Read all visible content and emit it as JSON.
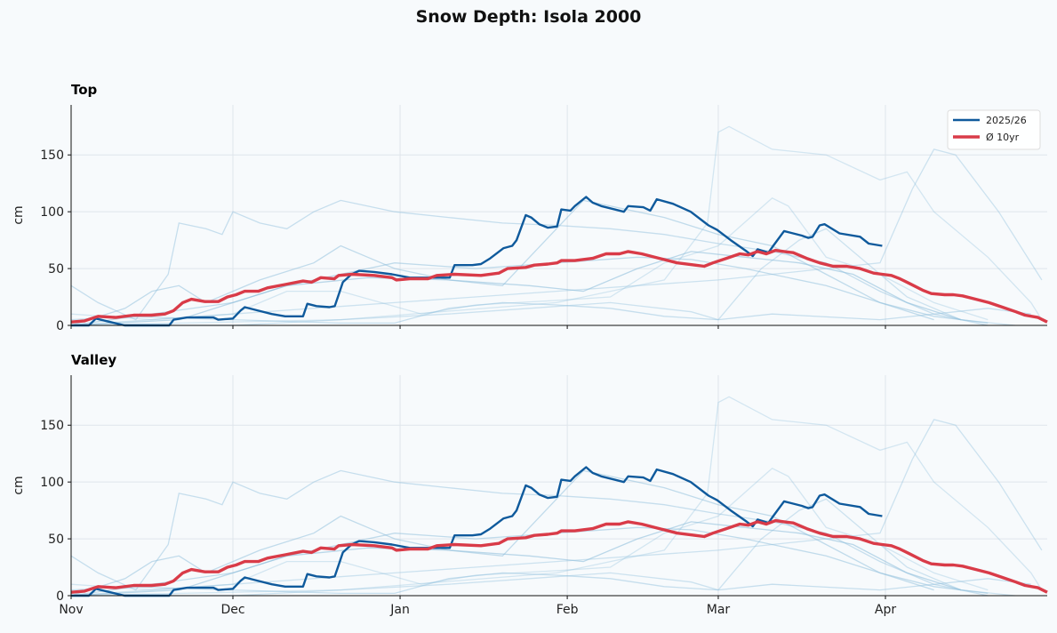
{
  "chart_data": {
    "type": "line",
    "title": "Snow Depth: Isola 2000",
    "xlabel": "",
    "ylabel": "cm",
    "x_unit": "days since Nov 1",
    "xlim": [
      0,
      181
    ],
    "ylim": [
      0,
      194
    ],
    "yticks": [
      0,
      50,
      100,
      150
    ],
    "xticks": [
      {
        "day": 0,
        "label": "Nov"
      },
      {
        "day": 30,
        "label": "Dec"
      },
      {
        "day": 61,
        "label": "Jan"
      },
      {
        "day": 92,
        "label": "Feb"
      },
      {
        "day": 120,
        "label": "Mar"
      },
      {
        "day": 151,
        "label": "Apr"
      }
    ],
    "grid": true,
    "legend_position": "top-right",
    "colors": {
      "current": "#0f5a9c",
      "average": "#d93b48",
      "history": "#8fbfdc",
      "grid": "#dfe5eb"
    },
    "panels": [
      {
        "title": "Top"
      },
      {
        "title": "Valley"
      }
    ],
    "series": [
      {
        "name": "2025/26",
        "role": "current",
        "points": [
          [
            0,
            0
          ],
          [
            3.3,
            0
          ],
          [
            4.6,
            6
          ],
          [
            9.9,
            0
          ],
          [
            18.2,
            0
          ],
          [
            19,
            5
          ],
          [
            21.5,
            7
          ],
          [
            26.4,
            7
          ],
          [
            27.3,
            5
          ],
          [
            30,
            6
          ],
          [
            31.4,
            13
          ],
          [
            32.2,
            16
          ],
          [
            34.7,
            13
          ],
          [
            37.2,
            10
          ],
          [
            39.7,
            8
          ],
          [
            43,
            8
          ],
          [
            43.8,
            19
          ],
          [
            45.5,
            17
          ],
          [
            47.9,
            16
          ],
          [
            48.9,
            17
          ],
          [
            50.4,
            38
          ],
          [
            52,
            45
          ],
          [
            53.4,
            48
          ],
          [
            56.2,
            47
          ],
          [
            59.5,
            45
          ],
          [
            62.8,
            42
          ],
          [
            67,
            42
          ],
          [
            70.2,
            42
          ],
          [
            71.1,
            53
          ],
          [
            74.4,
            53
          ],
          [
            76,
            54
          ],
          [
            77.7,
            59
          ],
          [
            80.2,
            68
          ],
          [
            81.8,
            70
          ],
          [
            82.6,
            75
          ],
          [
            84.3,
            97
          ],
          [
            85.3,
            95
          ],
          [
            86.8,
            89
          ],
          [
            88.4,
            86
          ],
          [
            90.1,
            87
          ],
          [
            90.9,
            102
          ],
          [
            92.6,
            101
          ],
          [
            93.4,
            105
          ],
          [
            95.5,
            113
          ],
          [
            96.7,
            108
          ],
          [
            98.3,
            105
          ],
          [
            100.8,
            102
          ],
          [
            102.5,
            100
          ],
          [
            103.3,
            105
          ],
          [
            106.1,
            104
          ],
          [
            107.4,
            101
          ],
          [
            108.6,
            111
          ],
          [
            111.6,
            107
          ],
          [
            114.9,
            100
          ],
          [
            118.2,
            88
          ],
          [
            119.8,
            84
          ],
          [
            122.3,
            75
          ],
          [
            125.3,
            65
          ],
          [
            126.4,
            61
          ],
          [
            127.3,
            67
          ],
          [
            129.3,
            64
          ],
          [
            130.2,
            70
          ],
          [
            132.2,
            83
          ],
          [
            135.5,
            79
          ],
          [
            136.7,
            77
          ],
          [
            137.5,
            78
          ],
          [
            138.8,
            88
          ],
          [
            139.7,
            89
          ],
          [
            142.5,
            81
          ],
          [
            146.3,
            78
          ],
          [
            147.9,
            72
          ],
          [
            150.4,
            70
          ]
        ]
      },
      {
        "name": "Ø 10yr",
        "role": "average",
        "points": [
          [
            0,
            3
          ],
          [
            2.5,
            4
          ],
          [
            5,
            8
          ],
          [
            8.3,
            7
          ],
          [
            11.6,
            9
          ],
          [
            14.9,
            9
          ],
          [
            17.4,
            10
          ],
          [
            19,
            13
          ],
          [
            20.7,
            20
          ],
          [
            22.3,
            23
          ],
          [
            24.8,
            21
          ],
          [
            27.3,
            21
          ],
          [
            29,
            25
          ],
          [
            30.6,
            27
          ],
          [
            32.2,
            30
          ],
          [
            34.7,
            30
          ],
          [
            36.4,
            33
          ],
          [
            39.7,
            36
          ],
          [
            43,
            39
          ],
          [
            44.6,
            38
          ],
          [
            46.3,
            42
          ],
          [
            48.8,
            41
          ],
          [
            49.6,
            44
          ],
          [
            52.1,
            45
          ],
          [
            56.2,
            44
          ],
          [
            59.5,
            42
          ],
          [
            60.3,
            40
          ],
          [
            62.8,
            41
          ],
          [
            66.1,
            41
          ],
          [
            67.8,
            44
          ],
          [
            71.1,
            45
          ],
          [
            76,
            44
          ],
          [
            79.3,
            46
          ],
          [
            80.9,
            50
          ],
          [
            84.3,
            51
          ],
          [
            85.9,
            53
          ],
          [
            88.4,
            54
          ],
          [
            90.1,
            55
          ],
          [
            90.9,
            57
          ],
          [
            93.4,
            57
          ],
          [
            96.7,
            59
          ],
          [
            99.2,
            63
          ],
          [
            101.7,
            63
          ],
          [
            103.3,
            65
          ],
          [
            105.8,
            63
          ],
          [
            109.1,
            59
          ],
          [
            112.4,
            55
          ],
          [
            115.7,
            53
          ],
          [
            117.4,
            52
          ],
          [
            119,
            55
          ],
          [
            121.5,
            59
          ],
          [
            124,
            63
          ],
          [
            125.6,
            62
          ],
          [
            127.3,
            65
          ],
          [
            128.9,
            63
          ],
          [
            130.6,
            66
          ],
          [
            132.2,
            65
          ],
          [
            133.9,
            64
          ],
          [
            136.4,
            59
          ],
          [
            138.8,
            55
          ],
          [
            141.3,
            52
          ],
          [
            143.8,
            52
          ],
          [
            146.3,
            50
          ],
          [
            148.8,
            46
          ],
          [
            150.4,
            45
          ],
          [
            152.1,
            44
          ],
          [
            153.7,
            41
          ],
          [
            155.4,
            37
          ],
          [
            157.9,
            31
          ],
          [
            159.5,
            28
          ],
          [
            162,
            27
          ],
          [
            163.6,
            27
          ],
          [
            165.3,
            26
          ],
          [
            167.8,
            23
          ],
          [
            170.2,
            20
          ],
          [
            172.7,
            16
          ],
          [
            175.2,
            12
          ],
          [
            176.9,
            9
          ],
          [
            179.3,
            7
          ],
          [
            181,
            3
          ]
        ]
      }
    ],
    "history": [
      [
        [
          0,
          0
        ],
        [
          50,
          5
        ],
        [
          90,
          20
        ],
        [
          110,
          40
        ],
        [
          118,
          90
        ],
        [
          120,
          170
        ],
        [
          122,
          175
        ],
        [
          130,
          155
        ],
        [
          140,
          150
        ],
        [
          150,
          128
        ],
        [
          155,
          135
        ],
        [
          160,
          100
        ],
        [
          170,
          60
        ],
        [
          178,
          20
        ],
        [
          180,
          5
        ]
      ],
      [
        [
          0,
          0
        ],
        [
          30,
          10
        ],
        [
          60,
          20
        ],
        [
          90,
          30
        ],
        [
          120,
          40
        ],
        [
          150,
          55
        ],
        [
          156,
          120
        ],
        [
          160,
          155
        ],
        [
          164,
          150
        ],
        [
          172,
          100
        ],
        [
          180,
          40
        ]
      ],
      [
        [
          0,
          35
        ],
        [
          5,
          20
        ],
        [
          12,
          5
        ],
        [
          15,
          25
        ],
        [
          18,
          45
        ],
        [
          20,
          90
        ],
        [
          25,
          85
        ],
        [
          28,
          80
        ],
        [
          30,
          100
        ],
        [
          35,
          90
        ],
        [
          40,
          85
        ],
        [
          45,
          100
        ],
        [
          50,
          110
        ],
        [
          60,
          100
        ],
        [
          70,
          95
        ],
        [
          80,
          90
        ],
        [
          90,
          88
        ],
        [
          100,
          85
        ],
        [
          110,
          80
        ],
        [
          120,
          72
        ],
        [
          130,
          65
        ],
        [
          140,
          55
        ],
        [
          150,
          30
        ],
        [
          160,
          10
        ],
        [
          170,
          0
        ]
      ],
      [
        [
          0,
          0
        ],
        [
          10,
          15
        ],
        [
          15,
          30
        ],
        [
          20,
          35
        ],
        [
          25,
          20
        ],
        [
          35,
          40
        ],
        [
          45,
          55
        ],
        [
          50,
          70
        ],
        [
          55,
          60
        ],
        [
          60,
          50
        ],
        [
          70,
          40
        ],
        [
          80,
          35
        ],
        [
          95,
          110
        ],
        [
          100,
          105
        ],
        [
          110,
          95
        ],
        [
          120,
          80
        ],
        [
          130,
          70
        ],
        [
          140,
          45
        ],
        [
          150,
          20
        ],
        [
          160,
          5
        ]
      ],
      [
        [
          0,
          0
        ],
        [
          20,
          5
        ],
        [
          30,
          20
        ],
        [
          40,
          35
        ],
        [
          55,
          42
        ],
        [
          70,
          40
        ],
        [
          85,
          35
        ],
        [
          95,
          30
        ],
        [
          105,
          50
        ],
        [
          115,
          65
        ],
        [
          125,
          60
        ],
        [
          135,
          55
        ],
        [
          145,
          45
        ],
        [
          155,
          20
        ],
        [
          165,
          5
        ]
      ],
      [
        [
          0,
          10
        ],
        [
          15,
          5
        ],
        [
          30,
          10
        ],
        [
          40,
          30
        ],
        [
          50,
          30
        ],
        [
          65,
          10
        ],
        [
          75,
          18
        ],
        [
          90,
          22
        ],
        [
          100,
          25
        ],
        [
          110,
          55
        ],
        [
          120,
          70
        ],
        [
          130,
          112
        ],
        [
          133,
          105
        ],
        [
          140,
          60
        ],
        [
          150,
          45
        ],
        [
          160,
          20
        ],
        [
          170,
          5
        ]
      ],
      [
        [
          0,
          0
        ],
        [
          30,
          0
        ],
        [
          50,
          5
        ],
        [
          70,
          10
        ],
        [
          85,
          15
        ],
        [
          100,
          20
        ],
        [
          115,
          12
        ],
        [
          120,
          5
        ],
        [
          128,
          50
        ],
        [
          135,
          75
        ],
        [
          140,
          85
        ],
        [
          145,
          65
        ],
        [
          155,
          25
        ],
        [
          165,
          5
        ],
        [
          175,
          0
        ]
      ],
      [
        [
          0,
          5
        ],
        [
          10,
          8
        ],
        [
          30,
          5
        ],
        [
          50,
          2
        ],
        [
          60,
          2
        ],
        [
          70,
          15
        ],
        [
          80,
          20
        ],
        [
          90,
          18
        ],
        [
          100,
          15
        ],
        [
          110,
          8
        ],
        [
          120,
          5
        ],
        [
          130,
          10
        ],
        [
          150,
          5
        ],
        [
          170,
          15
        ],
        [
          178,
          10
        ]
      ],
      [
        [
          0,
          0
        ],
        [
          30,
          20
        ],
        [
          40,
          35
        ],
        [
          50,
          45
        ],
        [
          60,
          55
        ],
        [
          75,
          50
        ],
        [
          90,
          55
        ],
        [
          105,
          60
        ],
        [
          115,
          58
        ],
        [
          125,
          50
        ],
        [
          140,
          35
        ],
        [
          150,
          20
        ],
        [
          160,
          8
        ],
        [
          170,
          2
        ]
      ]
    ]
  }
}
